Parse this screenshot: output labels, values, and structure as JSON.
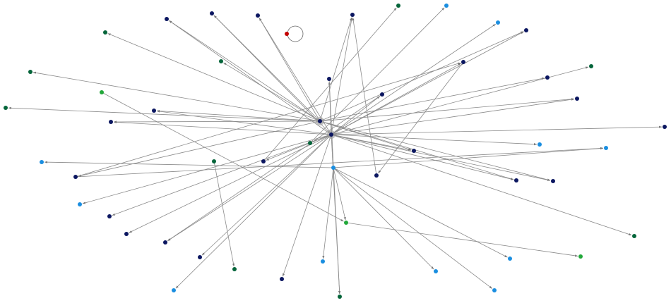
{
  "graph": {
    "directed": true,
    "colors": {
      "navy": "#0b1660",
      "darkgreen": "#05653a",
      "green": "#22a83a",
      "lightblue": "#1a8ee0",
      "red": "#c40000",
      "edge": "#8a8a8a"
    },
    "nodes": [
      {
        "id": "A",
        "group": "navy"
      },
      {
        "id": "B",
        "group": "navy"
      },
      {
        "id": "n1",
        "group": "navy"
      },
      {
        "id": "n2",
        "group": "navy"
      },
      {
        "id": "n3",
        "group": "navy"
      },
      {
        "id": "n4",
        "group": "navy"
      },
      {
        "id": "n5",
        "group": "navy"
      },
      {
        "id": "n6",
        "group": "navy"
      },
      {
        "id": "n7",
        "group": "navy"
      },
      {
        "id": "n8",
        "group": "navy"
      },
      {
        "id": "n9",
        "group": "navy"
      },
      {
        "id": "n10",
        "group": "navy"
      },
      {
        "id": "n11",
        "group": "navy"
      },
      {
        "id": "n12",
        "group": "navy"
      },
      {
        "id": "n13",
        "group": "navy"
      },
      {
        "id": "n14",
        "group": "navy"
      },
      {
        "id": "n15",
        "group": "navy"
      },
      {
        "id": "n16",
        "group": "navy"
      },
      {
        "id": "n17",
        "group": "navy"
      },
      {
        "id": "n18",
        "group": "navy"
      },
      {
        "id": "n19",
        "group": "navy"
      },
      {
        "id": "n20",
        "group": "navy"
      },
      {
        "id": "n21",
        "group": "navy"
      },
      {
        "id": "n22",
        "group": "navy"
      },
      {
        "id": "n23",
        "group": "navy"
      },
      {
        "id": "n24",
        "group": "navy"
      },
      {
        "id": "g1",
        "group": "darkgreen"
      },
      {
        "id": "g2",
        "group": "darkgreen"
      },
      {
        "id": "g3",
        "group": "darkgreen"
      },
      {
        "id": "g4",
        "group": "darkgreen"
      },
      {
        "id": "g5",
        "group": "darkgreen"
      },
      {
        "id": "g6",
        "group": "darkgreen"
      },
      {
        "id": "g7",
        "group": "darkgreen"
      },
      {
        "id": "g8",
        "group": "darkgreen"
      },
      {
        "id": "g9",
        "group": "darkgreen"
      },
      {
        "id": "g10",
        "group": "darkgreen"
      },
      {
        "id": "g11",
        "group": "darkgreen"
      },
      {
        "id": "b1",
        "group": "green"
      },
      {
        "id": "b2",
        "group": "green"
      },
      {
        "id": "b3",
        "group": "green"
      },
      {
        "id": "l1",
        "group": "lightblue"
      },
      {
        "id": "l2",
        "group": "lightblue"
      },
      {
        "id": "l3",
        "group": "lightblue"
      },
      {
        "id": "l4",
        "group": "lightblue"
      },
      {
        "id": "l5",
        "group": "lightblue"
      },
      {
        "id": "l6",
        "group": "lightblue"
      },
      {
        "id": "C",
        "group": "lightblue"
      },
      {
        "id": "l7",
        "group": "lightblue"
      },
      {
        "id": "l8",
        "group": "lightblue"
      },
      {
        "id": "l9",
        "group": "lightblue"
      },
      {
        "id": "l10",
        "group": "lightblue"
      },
      {
        "id": "l11",
        "group": "lightblue"
      },
      {
        "id": "r1",
        "group": "red"
      }
    ],
    "edges": [
      [
        "A",
        "n1"
      ],
      [
        "A",
        "n2"
      ],
      [
        "A",
        "n3"
      ],
      [
        "A",
        "g2"
      ],
      [
        "A",
        "g4"
      ],
      [
        "A",
        "g5"
      ],
      [
        "A",
        "n9"
      ],
      [
        "A",
        "n10"
      ],
      [
        "A",
        "n5"
      ],
      [
        "A",
        "n7"
      ],
      [
        "A",
        "n8"
      ],
      [
        "A",
        "n12"
      ],
      [
        "A",
        "n16"
      ],
      [
        "A",
        "n17"
      ],
      [
        "A",
        "n4"
      ],
      [
        "A",
        "n18"
      ],
      [
        "A",
        "g3"
      ],
      [
        "B",
        "n1"
      ],
      [
        "B",
        "n2"
      ],
      [
        "B",
        "n3"
      ],
      [
        "B",
        "n4"
      ],
      [
        "B",
        "n14"
      ],
      [
        "B",
        "n15"
      ],
      [
        "B",
        "n6"
      ],
      [
        "B",
        "l2"
      ],
      [
        "B",
        "n5"
      ],
      [
        "B",
        "n8"
      ],
      [
        "B",
        "n11"
      ],
      [
        "B",
        "n12"
      ],
      [
        "B",
        "n13"
      ],
      [
        "B",
        "n17"
      ],
      [
        "B",
        "n19"
      ],
      [
        "B",
        "n20"
      ],
      [
        "B",
        "n21"
      ],
      [
        "B",
        "n22"
      ],
      [
        "B",
        "n23"
      ],
      [
        "B",
        "n9"
      ],
      [
        "B",
        "n10"
      ],
      [
        "B",
        "g11"
      ],
      [
        "B",
        "l6"
      ],
      [
        "B",
        "l11"
      ],
      [
        "B",
        "g9"
      ],
      [
        "B",
        "g6"
      ],
      [
        "B",
        "l3"
      ],
      [
        "B",
        "n16"
      ],
      [
        "n14",
        "g11"
      ],
      [
        "n15",
        "n21"
      ],
      [
        "n6",
        "n24"
      ],
      [
        "n13",
        "g1"
      ],
      [
        "g7",
        "l1"
      ],
      [
        "g8",
        "g10"
      ],
      [
        "b1",
        "b2"
      ],
      [
        "b2",
        "b3"
      ],
      [
        "C",
        "b2"
      ],
      [
        "C",
        "l10"
      ],
      [
        "C",
        "l8"
      ],
      [
        "C",
        "l9"
      ],
      [
        "C",
        "l7"
      ],
      [
        "C",
        "l4"
      ],
      [
        "C",
        "l5"
      ],
      [
        "n18",
        "l4"
      ],
      [
        "n24",
        "n4"
      ],
      [
        "n18",
        "n6"
      ],
      [
        "r1",
        "r1"
      ]
    ]
  }
}
